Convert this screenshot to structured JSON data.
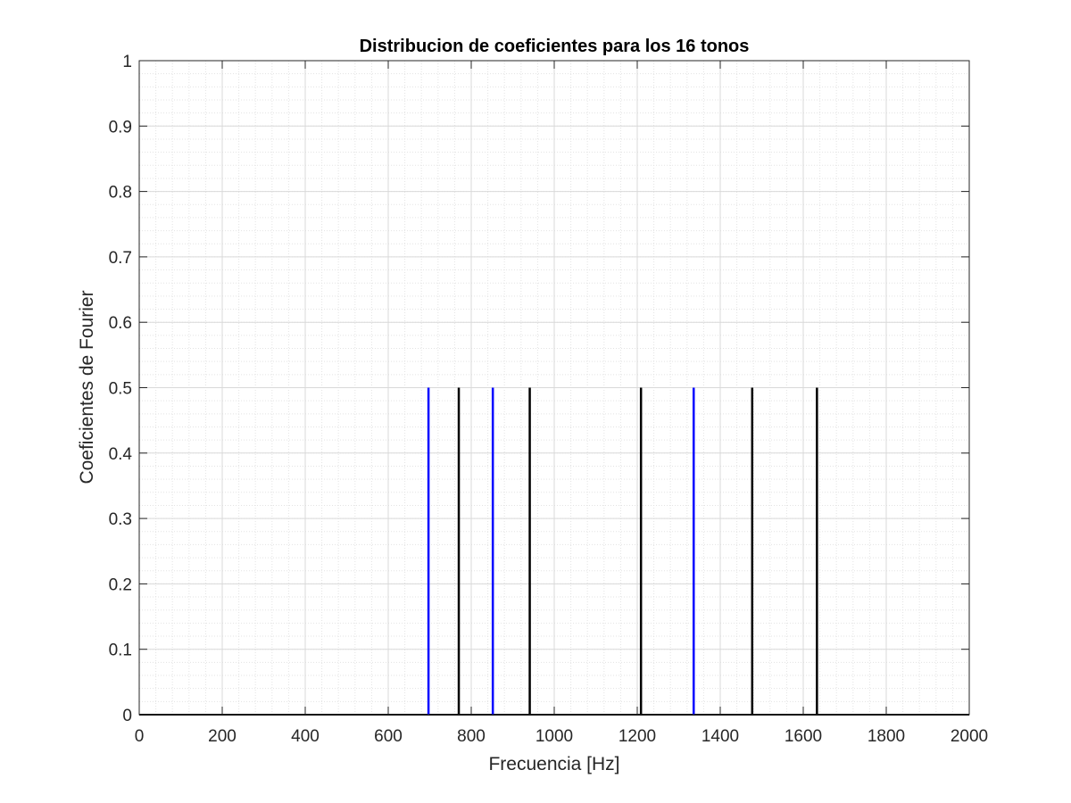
{
  "chart_data": {
    "type": "stem",
    "title": "Distribucion de coeficientes para los 16 tonos",
    "xlabel": "Frecuencia [Hz]",
    "ylabel": "Coeficientes de Fourier",
    "xlim": [
      0,
      2000
    ],
    "ylim": [
      0,
      1
    ],
    "xticks": [
      0,
      200,
      400,
      600,
      800,
      1000,
      1200,
      1400,
      1600,
      1800,
      2000
    ],
    "yticks": [
      0,
      0.1,
      0.2,
      0.3,
      0.4,
      0.5,
      0.6,
      0.7,
      0.8,
      0.9,
      1
    ],
    "xtick_labels": [
      "0",
      "200",
      "400",
      "600",
      "800",
      "1000",
      "1200",
      "1400",
      "1600",
      "1800",
      "2000"
    ],
    "ytick_labels": [
      "0",
      "0.1",
      "0.2",
      "0.3",
      "0.4",
      "0.5",
      "0.6",
      "0.7",
      "0.8",
      "0.9",
      "1"
    ],
    "grid": true,
    "minor_grid": true,
    "series": [
      {
        "color": "#0000ff",
        "x": [
          697,
          852,
          1336
        ],
        "values": [
          0.5,
          0.5,
          0.5
        ]
      },
      {
        "color": "#000000",
        "x": [
          770,
          941,
          1209,
          1477,
          1633
        ],
        "values": [
          0.5,
          0.5,
          0.5,
          0.5,
          0.5
        ]
      }
    ]
  }
}
